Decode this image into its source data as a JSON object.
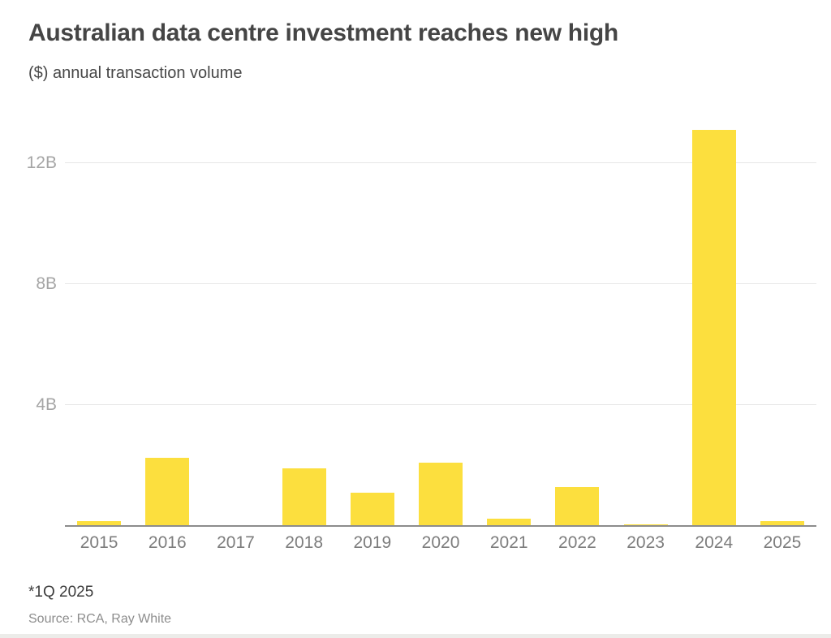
{
  "header": {
    "title": "Australian data centre investment reaches new high",
    "subtitle": "($) annual transaction volume"
  },
  "footer": {
    "note": "*1Q 2025",
    "source": "Source: RCA, Ray White"
  },
  "colors": {
    "bar": "#fcdf3e",
    "title_text": "#454545",
    "subtitle_text": "#474747",
    "ytick_text": "#a5a5a5",
    "xtick_text": "#7d7d7d",
    "gridline": "#e7e7e7",
    "axis_line": "#8c8c8c",
    "footnote_text": "#3d3d3d",
    "source_text": "#8d8d8d"
  },
  "chart_data": {
    "type": "bar",
    "title": "Australian data centre investment reaches new high",
    "subtitle": "($) annual transaction volume",
    "xlabel": "",
    "ylabel": "($) annual transaction volume, billions",
    "categories": [
      "2015",
      "2016",
      "2017",
      "2018",
      "2019",
      "2020",
      "2021",
      "2022",
      "2023",
      "2024",
      "2025"
    ],
    "values": [
      0.15,
      2.25,
      0,
      1.9,
      1.1,
      2.1,
      0.25,
      1.3,
      0.05,
      13.1,
      0.15
    ],
    "unit": "B",
    "yticks": [
      "4B",
      "8B",
      "12B"
    ],
    "ytick_values": [
      4,
      8,
      12
    ],
    "ylim": [
      0,
      13.65
    ],
    "grid": true,
    "legend": false,
    "bar_color": "#fcdf3e",
    "note": "*1Q 2025 (2025 value is first quarter only)",
    "source": "Source: RCA, Ray White"
  }
}
